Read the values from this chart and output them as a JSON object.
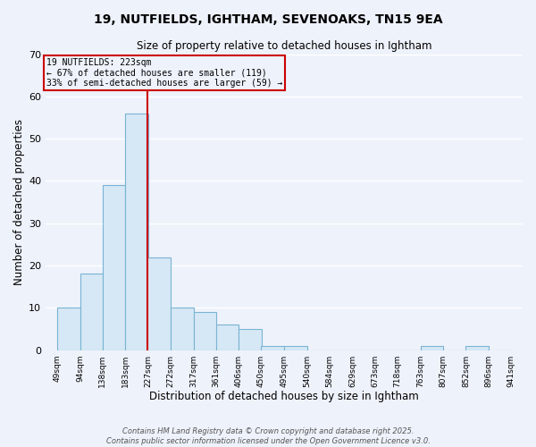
{
  "title1": "19, NUTFIELDS, IGHTHAM, SEVENOAKS, TN15 9EA",
  "title2": "Size of property relative to detached houses in Ightham",
  "xlabel": "Distribution of detached houses by size in Ightham",
  "ylabel": "Number of detached properties",
  "bar_color": "#d6e8f5",
  "bar_edge_color": "#7ab3d3",
  "bins": [
    49,
    94,
    138,
    183,
    227,
    272,
    317,
    361,
    406,
    450,
    495,
    540,
    584,
    629,
    673,
    718,
    763,
    807,
    852,
    896,
    941
  ],
  "counts": [
    10,
    18,
    39,
    56,
    22,
    10,
    9,
    6,
    5,
    1,
    1,
    0,
    0,
    0,
    0,
    0,
    1,
    0,
    1,
    0
  ],
  "ylim": [
    0,
    70
  ],
  "yticks": [
    0,
    10,
    20,
    30,
    40,
    50,
    60,
    70
  ],
  "property_bin_edge": 227,
  "annotation_line1": "19 NUTFIELDS: 223sqm",
  "annotation_line2": "← 67% of detached houses are smaller (119)",
  "annotation_line3": "33% of semi-detached houses are larger (59) →",
  "red_line_color": "#cc0000",
  "footer1": "Contains HM Land Registry data © Crown copyright and database right 2025.",
  "footer2": "Contains public sector information licensed under the Open Government Licence v3.0.",
  "background_color": "#eef2fb",
  "grid_color": "#ffffff"
}
